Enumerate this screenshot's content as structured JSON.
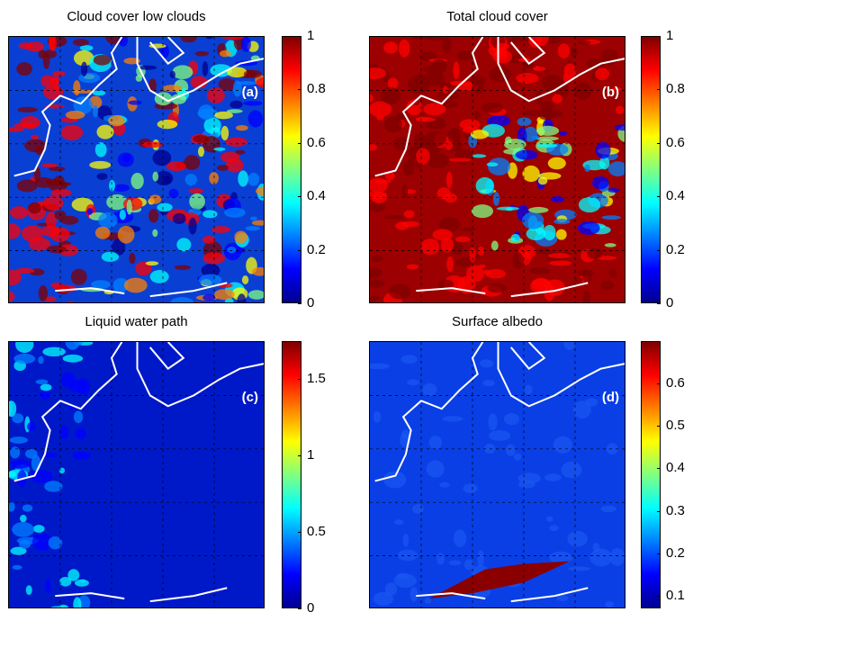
{
  "chart_data": [
    {
      "type": "heatmap",
      "title": "Cloud cover low clouds",
      "panel_label": "(a)",
      "colorbar": {
        "ticks": [
          "0",
          "0.2",
          "0.4",
          "0.6",
          "0.8",
          "1"
        ],
        "range": [
          0,
          1
        ]
      },
      "background": "#0a3fd4"
    },
    {
      "type": "heatmap",
      "title": "Total cloud cover",
      "panel_label": "(b)",
      "colorbar": {
        "ticks": [
          "0",
          "0.2",
          "0.4",
          "0.6",
          "0.8",
          "1"
        ],
        "range": [
          0,
          1
        ]
      },
      "background": "#9c0000"
    },
    {
      "type": "heatmap",
      "title": "Liquid water path",
      "panel_label": "(c)",
      "colorbar": {
        "ticks": [
          "0",
          "0.5",
          "1",
          "1.5"
        ],
        "range": [
          0,
          1.75
        ]
      },
      "background": "#0019c8"
    },
    {
      "type": "heatmap",
      "title": "Surface albedo",
      "panel_label": "(d)",
      "colorbar": {
        "ticks": [
          "0.1",
          "0.2",
          "0.3",
          "0.4",
          "0.5",
          "0.6"
        ],
        "range": [
          0.07,
          0.7
        ]
      },
      "background": "#0a3fe6"
    }
  ],
  "colormap": "jet",
  "coastline_color": "#ffffff",
  "grid": true
}
